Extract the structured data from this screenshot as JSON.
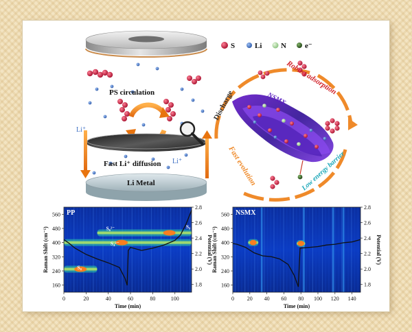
{
  "schematic": {
    "ps_circulation": "PS circulation",
    "fast_li_diffusion": "Fast Li⁺ diffusion",
    "li_metal": "Li Metal",
    "li_plus_left": "Li⁺",
    "li_plus_right": "Li⁺"
  },
  "legend": {
    "items": [
      {
        "symbol": "S",
        "color": "#c8163a"
      },
      {
        "symbol": "Li",
        "color": "#3d6fc4"
      },
      {
        "symbol": "N",
        "color": "#a6d69a"
      },
      {
        "symbol": "e⁻",
        "color": "#2e5a1e"
      }
    ]
  },
  "nsmx_diagram": {
    "discharge": "Discharge",
    "robust_adsorption": "Robust adsorption",
    "nsmx": "NSMX",
    "fast_evolution": "Fast evolution",
    "low_energy_barrier": "Low energy barrier"
  },
  "chart_data": [
    {
      "type": "heatmap",
      "title": "PP",
      "xlabel": "Time (min)",
      "ylabel": "Raman Shift (cm⁻¹)",
      "y2label": "Potential (V)",
      "xlim": [
        0,
        115
      ],
      "ylim": [
        120,
        600
      ],
      "y2lim": [
        1.7,
        2.8
      ],
      "xticks": [
        "0",
        "20",
        "40",
        "60",
        "80",
        "100"
      ],
      "xtick_values": [
        0,
        20,
        40,
        60,
        80,
        100
      ],
      "yticks": [
        "160",
        "240",
        "320",
        "400",
        "480",
        "560"
      ],
      "ytick_values": [
        160,
        240,
        320,
        400,
        480,
        560
      ],
      "y2ticks": [
        "1.8",
        "2.0",
        "2.2",
        "2.4",
        "2.6",
        "2.8"
      ],
      "y2tick_values": [
        1.8,
        2.0,
        2.2,
        2.4,
        2.6,
        2.8
      ],
      "annotations": [
        {
          "label": "S₆²⁻",
          "x": 38,
          "y": 470
        },
        {
          "label": "S₄²⁻",
          "x": 42,
          "y": 385
        },
        {
          "label": "S₈",
          "x": 12,
          "y": 250
        },
        {
          "label": "S₈",
          "x": 110,
          "y": 480
        }
      ],
      "bands": [
        {
          "y": 400,
          "x0": 0,
          "x1": 115,
          "peak_x": 52
        },
        {
          "y": 455,
          "x0": 30,
          "x1": 115,
          "peak_x": 95
        },
        {
          "y": 250,
          "x0": 0,
          "x1": 30,
          "peak_x": 15
        }
      ],
      "series": [
        {
          "x": [
            0,
            5,
            10,
            15,
            20,
            30,
            40,
            50,
            55,
            57,
            58,
            60,
            70,
            80,
            90,
            100,
            105,
            110,
            115
          ],
          "y": [
            2.38,
            2.33,
            2.27,
            2.23,
            2.19,
            2.13,
            2.08,
            2.02,
            1.88,
            1.79,
            2.24,
            2.28,
            2.24,
            2.27,
            2.31,
            2.37,
            2.44,
            2.58,
            2.76
          ]
        }
      ]
    },
    {
      "type": "heatmap",
      "title": "NSMX",
      "xlabel": "Time (min)",
      "ylabel": "Raman Shift (cm⁻¹)",
      "y2label": "Potential (V)",
      "xlim": [
        0,
        150
      ],
      "ylim": [
        120,
        600
      ],
      "y2lim": [
        1.7,
        2.8
      ],
      "xticks": [
        "0",
        "20",
        "40",
        "60",
        "80",
        "100",
        "120",
        "140"
      ],
      "xtick_values": [
        0,
        20,
        40,
        60,
        80,
        100,
        120,
        140
      ],
      "yticks": [
        "160",
        "240",
        "320",
        "400",
        "480",
        "560"
      ],
      "ytick_values": [
        160,
        240,
        320,
        400,
        480,
        560
      ],
      "y2ticks": [
        "1.8",
        "2.0",
        "2.2",
        "2.4",
        "2.6",
        "2.8"
      ],
      "y2tick_values": [
        1.8,
        2.0,
        2.2,
        2.4,
        2.6,
        2.8
      ],
      "bands": [
        {
          "y": 400,
          "x0": 18,
          "x1": 30,
          "peak_x": 24
        },
        {
          "y": 395,
          "x0": 75,
          "x1": 85,
          "peak_x": 80
        }
      ],
      "series": [
        {
          "x": [
            0,
            5,
            15,
            25,
            35,
            45,
            55,
            65,
            72,
            77,
            79,
            80,
            90,
            100,
            110,
            120,
            130,
            140,
            150
          ],
          "y": [
            2.33,
            2.32,
            2.28,
            2.21,
            2.17,
            2.16,
            2.13,
            2.06,
            1.92,
            1.77,
            2.27,
            2.27,
            2.28,
            2.29,
            2.31,
            2.32,
            2.34,
            2.35,
            2.38
          ]
        }
      ]
    }
  ]
}
